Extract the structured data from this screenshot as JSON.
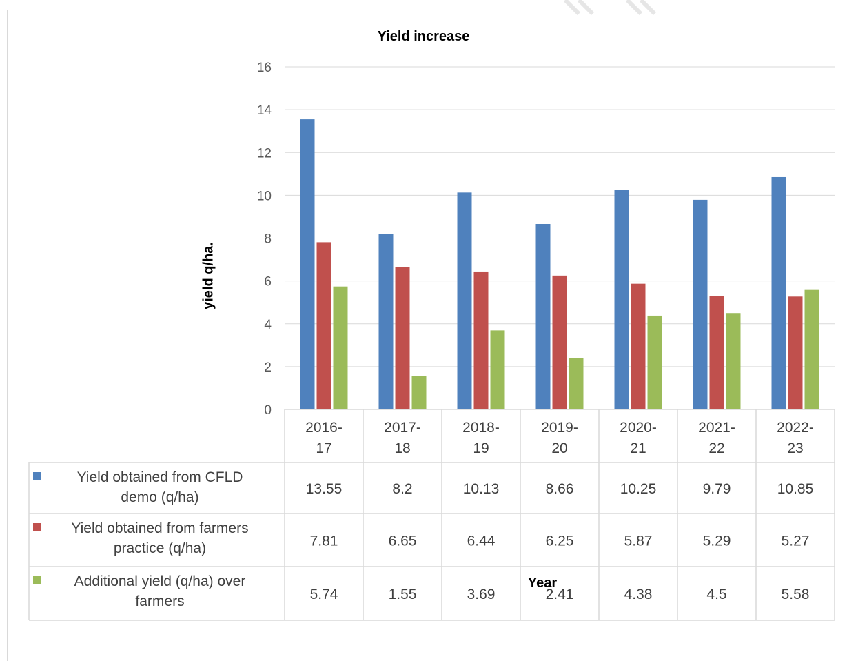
{
  "chart_data": {
    "type": "bar",
    "title": "Yield increase",
    "xlabel": "Year",
    "ylabel": "yield q/ha.",
    "ylim": [
      0,
      16
    ],
    "yticks": [
      "0",
      "2",
      "4",
      "6",
      "8",
      "10",
      "12",
      "14",
      "16"
    ],
    "grid": true,
    "legend": "data-table",
    "categories": [
      [
        "2016-",
        "17"
      ],
      [
        "2017-",
        "18"
      ],
      [
        "2018-",
        "19"
      ],
      [
        "2019-",
        "20"
      ],
      [
        "2020-",
        "21"
      ],
      [
        "2021-",
        "22"
      ],
      [
        "2022-",
        "23"
      ]
    ],
    "series": [
      {
        "name": [
          "Yield obtained from CFLD",
          "demo (q/ha)"
        ],
        "color": "#4f81bd",
        "values": [
          13.55,
          8.2,
          10.13,
          8.66,
          10.25,
          9.79,
          10.85
        ],
        "labels": [
          "13.55",
          "8.2",
          "10.13",
          "8.66",
          "10.25",
          "9.79",
          "10.85"
        ]
      },
      {
        "name": [
          "Yield obtained from farmers",
          "practice (q/ha)"
        ],
        "color": "#c0504d",
        "values": [
          7.81,
          6.65,
          6.44,
          6.25,
          5.87,
          5.29,
          5.27
        ],
        "labels": [
          "7.81",
          "6.65",
          "6.44",
          "6.25",
          "5.87",
          "5.29",
          "5.27"
        ]
      },
      {
        "name": [
          "Additional yield (q/ha) over",
          "farmers"
        ],
        "color": "#9bbb59",
        "values": [
          5.74,
          1.55,
          3.69,
          2.41,
          4.38,
          4.5,
          5.58
        ],
        "labels": [
          "5.74",
          "1.55",
          "3.69",
          "2.41",
          "4.38",
          "4.5",
          "5.58"
        ]
      }
    ]
  }
}
